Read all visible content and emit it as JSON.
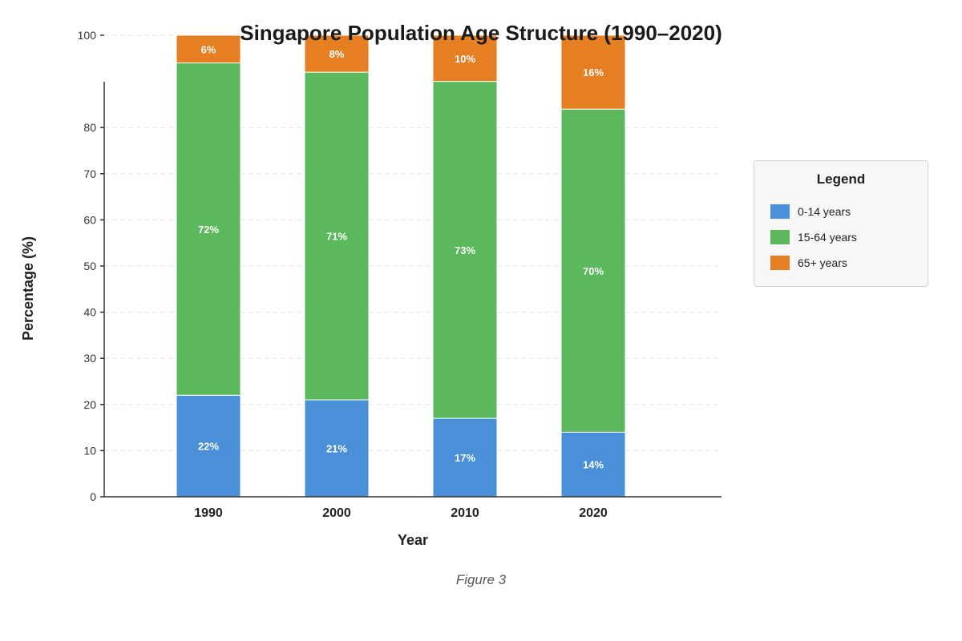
{
  "chart_data": {
    "type": "bar",
    "stacked": true,
    "title": "Singapore Population Age Structure (1990–2020)",
    "xlabel": "Year",
    "ylabel": "Percentage (%)",
    "ylim": [
      0,
      100
    ],
    "yticks": [
      0,
      10,
      20,
      30,
      40,
      50,
      60,
      70,
      80,
      100
    ],
    "grid": true,
    "legend_position": "right",
    "categories": [
      "1990",
      "2000",
      "2010",
      "2020"
    ],
    "series": [
      {
        "name": "0-14 years",
        "color": "#4a90d9",
        "values": [
          22,
          21,
          17,
          14
        ],
        "labels": [
          "22%",
          "21%",
          "17%",
          "14%"
        ]
      },
      {
        "name": "15-64 years",
        "color": "#5cb85c",
        "values": [
          72,
          71,
          73,
          70
        ],
        "labels": [
          "72%",
          "71%",
          "73%",
          "70%"
        ]
      },
      {
        "name": "65+ years",
        "color": "#e67e22",
        "values": [
          6,
          8,
          10,
          16
        ],
        "labels": [
          "6%",
          "8%",
          "10%",
          "16%"
        ]
      }
    ]
  },
  "legend": {
    "title": "Legend"
  },
  "caption": "Figure 3"
}
